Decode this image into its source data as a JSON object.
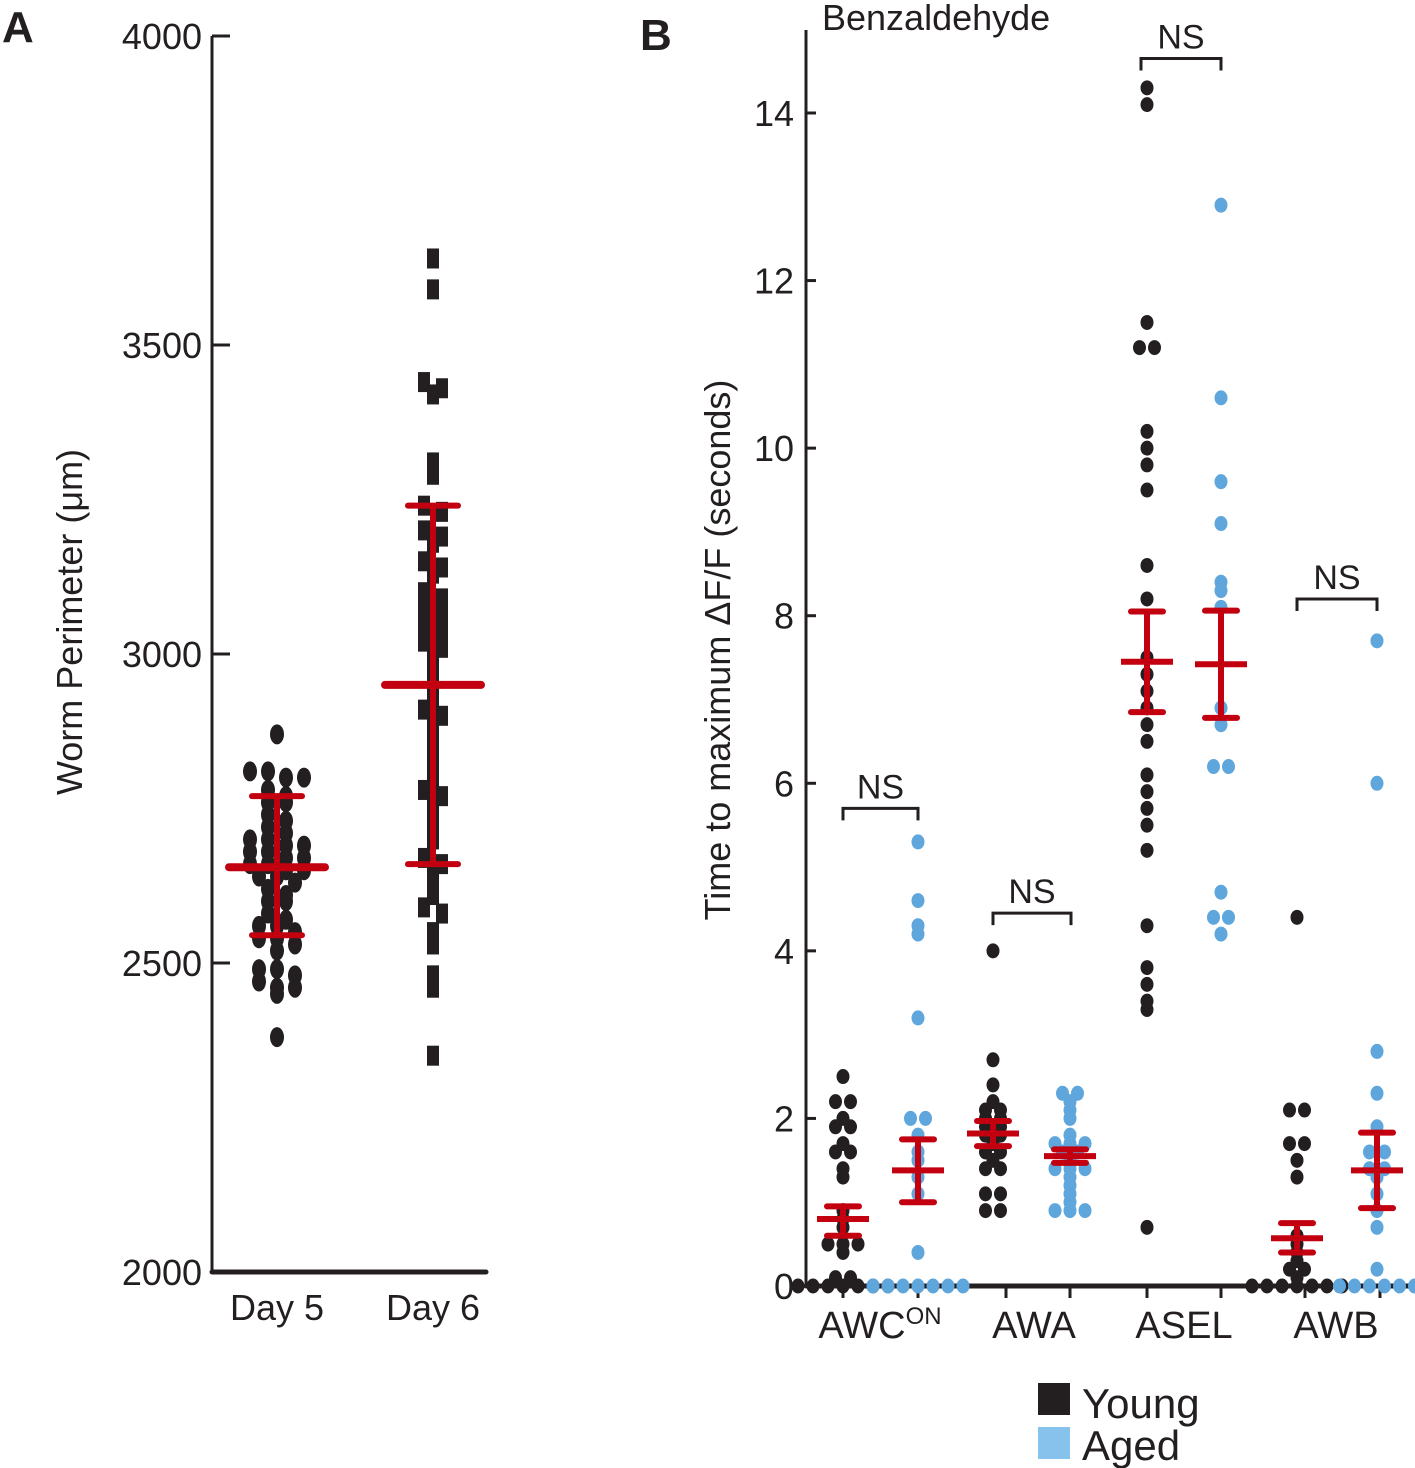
{
  "chart_data": [
    {
      "panel": "A",
      "type": "scatter",
      "title": "",
      "xlabel": "",
      "ylabel": "Worm Perimeter (μm)",
      "ylim": [
        2000,
        4000
      ],
      "yticks": [
        2000,
        2500,
        3000,
        3500,
        4000
      ],
      "categories": [
        "Day 5",
        "Day 6"
      ],
      "grid": false,
      "series": [
        {
          "name": "Day 5",
          "marker": "circle",
          "color": "#231f20",
          "mean": 2655,
          "sd_low": 2545,
          "sd_high": 2770,
          "values": [
            2870,
            2810,
            2810,
            2800,
            2800,
            2780,
            2770,
            2760,
            2760,
            2740,
            2730,
            2720,
            2710,
            2700,
            2700,
            2690,
            2690,
            2680,
            2680,
            2670,
            2670,
            2660,
            2660,
            2650,
            2650,
            2640,
            2640,
            2630,
            2620,
            2610,
            2600,
            2600,
            2580,
            2570,
            2560,
            2560,
            2550,
            2540,
            2540,
            2530,
            2520,
            2490,
            2490,
            2480,
            2470,
            2460,
            2460,
            2450,
            2380
          ]
        },
        {
          "name": "Day 6",
          "marker": "square",
          "color": "#231f20",
          "mean": 2950,
          "sd_low": 2660,
          "sd_high": 3240,
          "values": [
            3640,
            3590,
            3440,
            3430,
            3420,
            3310,
            3290,
            3240,
            3230,
            3200,
            3190,
            3180,
            3150,
            3140,
            3130,
            3100,
            3090,
            3070,
            3060,
            3040,
            3030,
            3020,
            3010,
            3000,
            2980,
            2950,
            2930,
            2910,
            2900,
            2880,
            2860,
            2840,
            2820,
            2800,
            2780,
            2770,
            2760,
            2740,
            2720,
            2700,
            2670,
            2660,
            2650,
            2630,
            2610,
            2590,
            2580,
            2550,
            2530,
            2480,
            2460,
            2350
          ]
        }
      ]
    },
    {
      "panel": "B",
      "type": "scatter",
      "title": "Benzaldehyde",
      "xlabel": "",
      "ylabel": "Time to maximum ΔF/F (seconds)",
      "ylim": [
        0,
        15
      ],
      "yticks": [
        0,
        2,
        4,
        6,
        8,
        10,
        12,
        14
      ],
      "categories": [
        "AWC",
        "AWA",
        "ASEL",
        "AWB"
      ],
      "category_superscripts": [
        "ON",
        "",
        "",
        ""
      ],
      "grid": false,
      "legend": {
        "placement": "bottom-center",
        "entries": [
          {
            "label": "Young",
            "color": "#231f20"
          },
          {
            "label": "Aged",
            "color": "#86c2ec"
          }
        ]
      },
      "significance": [
        {
          "category": "AWC",
          "label": "NS",
          "level": 5.7
        },
        {
          "category": "AWA",
          "label": "NS",
          "level": 4.45
        },
        {
          "category": "ASEL",
          "label": "NS",
          "level": 14.65
        },
        {
          "category": "AWB",
          "label": "NS",
          "level": 8.2
        }
      ],
      "series": [
        {
          "name": "Young",
          "color": "#231f20",
          "groups": [
            {
              "category": "AWC",
              "mean": 0.8,
              "sem_low": 0.6,
              "sem_high": 0.95,
              "values": [
                2.5,
                2.2,
                2.2,
                2.0,
                1.9,
                1.9,
                1.7,
                1.6,
                1.6,
                1.4,
                1.3,
                0.9,
                0.8,
                0.7,
                0.5,
                0.5,
                0.5,
                0.4,
                0.1,
                0.1,
                0,
                0,
                0,
                0,
                0,
                0,
                0
              ]
            },
            {
              "category": "AWA",
              "mean": 1.82,
              "sem_low": 1.67,
              "sem_high": 1.97,
              "values": [
                4.0,
                2.7,
                2.4,
                2.2,
                2.1,
                2.1,
                2.0,
                2.0,
                1.9,
                1.9,
                1.8,
                1.8,
                1.7,
                1.6,
                1.6,
                1.5,
                1.4,
                1.4,
                1.1,
                1.1,
                0.9,
                0.9
              ]
            },
            {
              "category": "ASEL",
              "mean": 7.45,
              "sem_low": 6.85,
              "sem_high": 8.05,
              "values": [
                14.3,
                14.1,
                11.5,
                11.2,
                11.2,
                10.2,
                10.0,
                9.8,
                9.5,
                8.6,
                8.2,
                7.5,
                7.3,
                7.1,
                6.9,
                6.7,
                6.5,
                6.1,
                5.9,
                5.7,
                5.5,
                5.2,
                4.3,
                3.8,
                3.6,
                3.4,
                3.3,
                0.7
              ]
            },
            {
              "category": "AWB",
              "mean": 0.57,
              "sem_low": 0.4,
              "sem_high": 0.75,
              "values": [
                4.4,
                2.1,
                2.1,
                1.7,
                1.7,
                1.5,
                1.3,
                0.6,
                0.5,
                0.4,
                0.3,
                0.2,
                0.2,
                0.1,
                0,
                0,
                0,
                0,
                0,
                0,
                0
              ]
            }
          ]
        },
        {
          "name": "Aged",
          "color": "#5ea6dc",
          "groups": [
            {
              "category": "AWC",
              "mean": 1.38,
              "sem_low": 1.0,
              "sem_high": 1.75,
              "values": [
                5.3,
                4.6,
                4.3,
                4.2,
                3.2,
                2.0,
                2.0,
                1.8,
                1.6,
                1.5,
                1.3,
                1.1,
                0.4,
                0,
                0,
                0,
                0,
                0,
                0,
                0
              ]
            },
            {
              "category": "AWA",
              "mean": 1.55,
              "sem_low": 1.47,
              "sem_high": 1.63,
              "values": [
                2.3,
                2.3,
                2.2,
                2.1,
                2.0,
                1.8,
                1.7,
                1.7,
                1.7,
                1.6,
                1.6,
                1.5,
                1.4,
                1.4,
                1.4,
                1.3,
                1.2,
                1.1,
                1.0,
                0.9,
                0.9,
                0.9
              ]
            },
            {
              "category": "ASEL",
              "mean": 7.42,
              "sem_low": 6.78,
              "sem_high": 8.06,
              "values": [
                12.9,
                10.6,
                9.6,
                9.1,
                8.4,
                8.3,
                8.1,
                6.9,
                6.7,
                6.2,
                6.2,
                4.7,
                4.4,
                4.4,
                4.2
              ]
            },
            {
              "category": "AWB",
              "mean": 1.38,
              "sem_low": 0.93,
              "sem_high": 1.83,
              "values": [
                7.7,
                6.0,
                2.8,
                2.3,
                1.9,
                1.6,
                1.6,
                1.4,
                1.4,
                1.3,
                1.1,
                0.9,
                0.7,
                0.2,
                0,
                0,
                0,
                0,
                0,
                0
              ]
            }
          ]
        }
      ]
    }
  ],
  "errorbar_color": "#c2000f"
}
